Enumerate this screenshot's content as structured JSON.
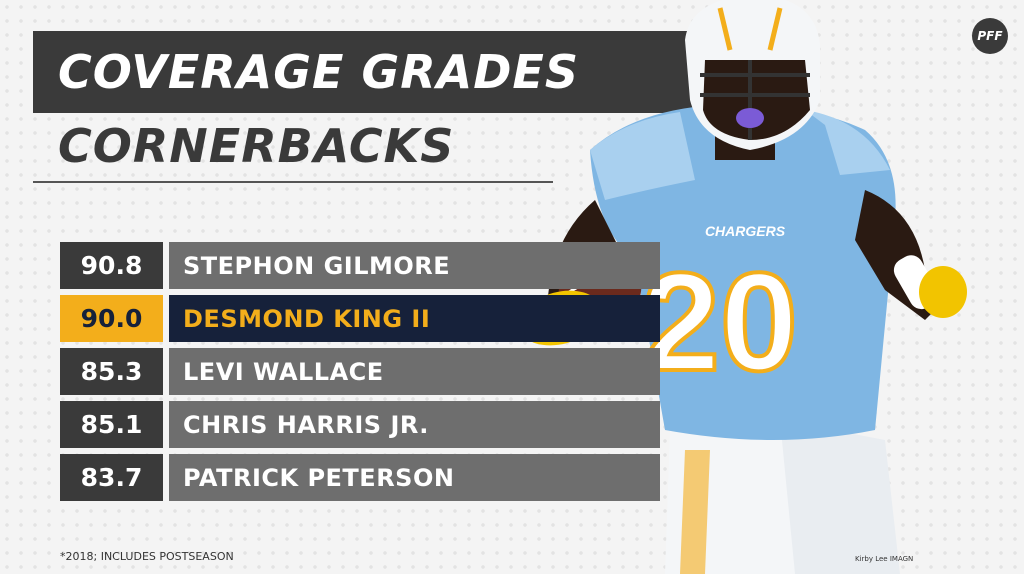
{
  "title": "COVERAGE GRADES",
  "subtitle": "CORNERBACKS",
  "logo": "PFF",
  "rows": [
    {
      "grade": "90.8",
      "name": "STEPHON GILMORE",
      "highlight": false
    },
    {
      "grade": "90.0",
      "name": "DESMOND KING II",
      "highlight": true
    },
    {
      "grade": "85.3",
      "name": "LEVI WALLACE",
      "highlight": false
    },
    {
      "grade": "85.1",
      "name": "CHRIS HARRIS JR.",
      "highlight": false
    },
    {
      "grade": "83.7",
      "name": "PATRICK PETERSON",
      "highlight": false
    }
  ],
  "footnote": "*2018; INCLUDES POSTSEASON",
  "credit": "Kirby Lee IMAGN",
  "jersey": {
    "team": "CHARGERS",
    "number": "20"
  },
  "colors": {
    "dark": "#3a3a3a",
    "gray": "#6e6e6e",
    "navy": "#16213a",
    "gold": "#f3ae1b",
    "powder_blue": "#7fb6e3"
  }
}
